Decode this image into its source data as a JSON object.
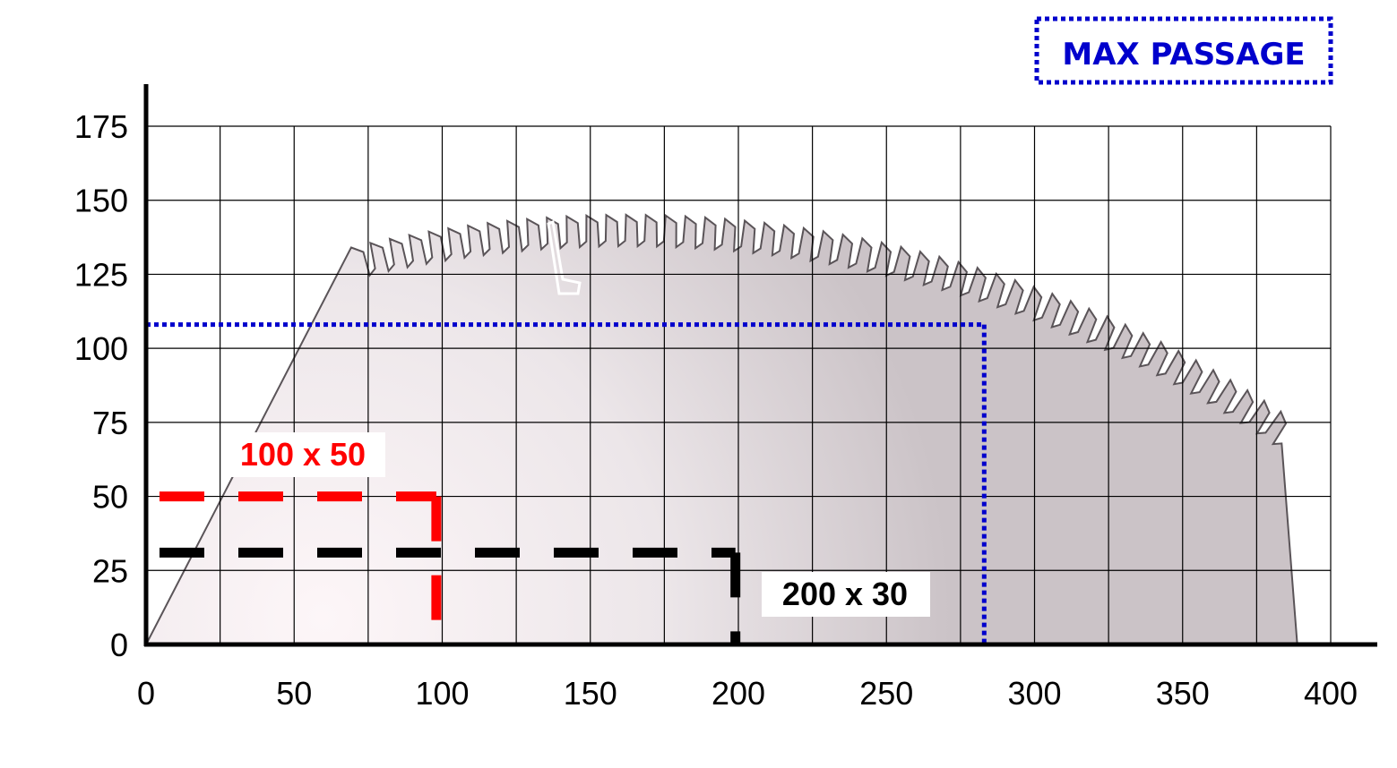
{
  "chart_data": {
    "type": "line",
    "title": "",
    "xlabel": "",
    "ylabel": "",
    "xlim": [
      0,
      400
    ],
    "ylim": [
      0,
      175
    ],
    "x_ticks": [
      "0",
      "50",
      "100",
      "150",
      "200",
      "250",
      "300",
      "350",
      "400"
    ],
    "y_ticks": [
      "0",
      "25",
      "50",
      "75",
      "100",
      "125",
      "150",
      "175"
    ],
    "grid": true,
    "legend": {
      "label": "MAX PASSAGE",
      "placement": "top-right",
      "color": "#0000cc"
    },
    "max_passage": {
      "x": 283,
      "y": 108,
      "color": "#0000cc"
    },
    "cuts": [
      {
        "label": "100 x 50",
        "width": 98,
        "height": 50,
        "color": "#ff0000"
      },
      {
        "label": "200 x 30",
        "width": 199,
        "height": 31,
        "color": "#000000"
      }
    ]
  }
}
